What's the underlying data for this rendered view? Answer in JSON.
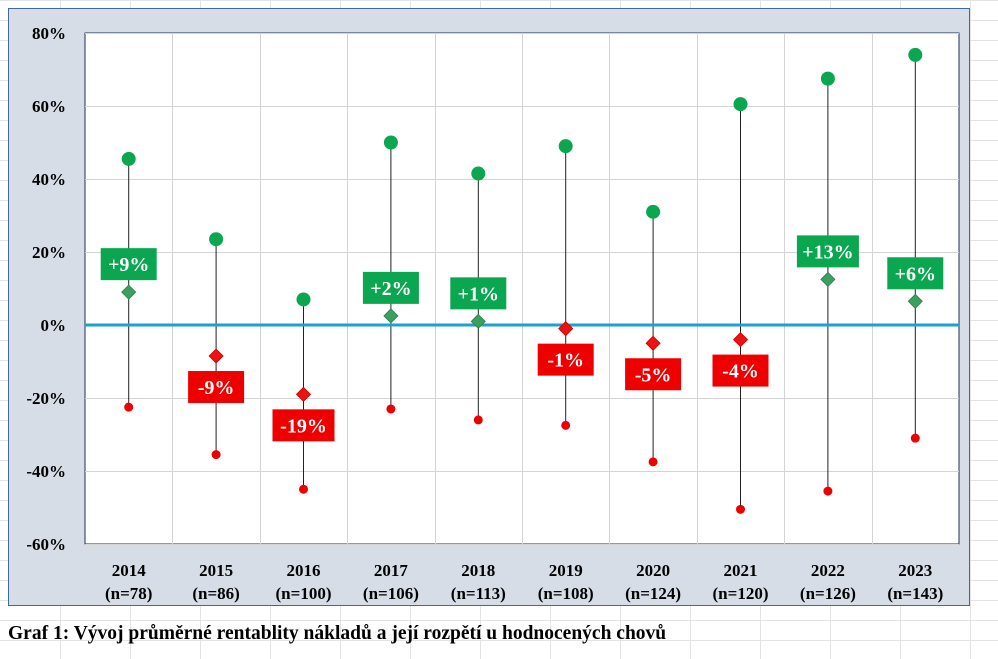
{
  "caption": "Graf 1: Vývoj průměrné rentablity nákladů a její rozpětí u hodnocených chovů",
  "colors": {
    "positive": "#0aa650",
    "negative": "#ee0000",
    "positive_marker": "#3aa060",
    "negative_marker": "#ee1111",
    "zero_line": "#1a9fd6",
    "plot_bg": "#ffffff",
    "frame_bg": "#d6dde7"
  },
  "chart_data": {
    "type": "scatter",
    "title": "",
    "xlabel": "",
    "ylabel": "",
    "ylim": [
      -60,
      80
    ],
    "yticks": [
      -60,
      -40,
      -20,
      0,
      20,
      40,
      60,
      80
    ],
    "ytick_labels": [
      "-60%",
      "-40%",
      "-20%",
      "0%",
      "20%",
      "40%",
      "60%",
      "80%"
    ],
    "grid": true,
    "categories": [
      "2014",
      "2015",
      "2016",
      "2017",
      "2018",
      "2019",
      "2020",
      "2021",
      "2022",
      "2023"
    ],
    "category_counts": [
      "(n=78)",
      "(n=86)",
      "(n=100)",
      "(n=106)",
      "(n=113)",
      "(n=108)",
      "(n=124)",
      "(n=120)",
      "(n=126)",
      "(n=143)"
    ],
    "series": [
      {
        "role": "max",
        "values": [
          45.5,
          23.5,
          7,
          50,
          41.5,
          49,
          31,
          60.5,
          67.5,
          74
        ]
      },
      {
        "role": "mean",
        "values": [
          9,
          -8.5,
          -19,
          2.5,
          1,
          -1,
          -5,
          -4,
          12.5,
          6.5
        ]
      },
      {
        "role": "min",
        "values": [
          -22.5,
          -35.5,
          -45,
          -23,
          -26,
          -27.5,
          -37.5,
          -50.5,
          -45.5,
          -31
        ]
      }
    ],
    "mean_labels": [
      "+9%",
      "-9%",
      "-19%",
      "+2%",
      "+1%",
      "-1%",
      "-5%",
      "-4%",
      "+13%",
      "+6%"
    ]
  }
}
